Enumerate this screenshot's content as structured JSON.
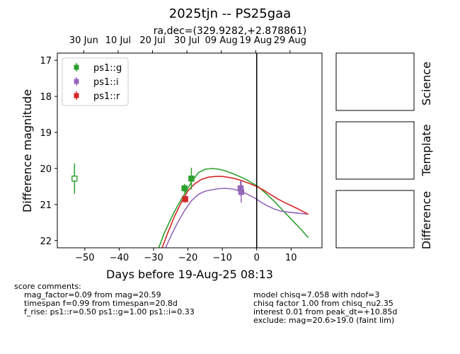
{
  "chart_data": {
    "type": "line",
    "title": "2025tjn -- PS25gaa",
    "subtitle": "ra,dec=(329.9282,+2.878861)",
    "xlabel": "Days before 19-Aug-25 08:13",
    "ylabel": "Difference magnitude",
    "xlim": [
      -58,
      19
    ],
    "ylim": [
      22.2,
      16.8
    ],
    "y_inverted": true,
    "x_ticks": [
      -50,
      -40,
      -30,
      -20,
      -10,
      0,
      10
    ],
    "x_tick_labels": [
      "−50",
      "−40",
      "−30",
      "−20",
      "−10",
      "0",
      "10"
    ],
    "y_ticks": [
      17,
      18,
      19,
      20,
      21,
      22
    ],
    "top_ticks": [
      {
        "x": -50.3,
        "label": "30 Jun"
      },
      {
        "x": -40.3,
        "label": "10 Jul"
      },
      {
        "x": -30.3,
        "label": "20 Jul"
      },
      {
        "x": -20.3,
        "label": "30 Jul"
      },
      {
        "x": -10.3,
        "label": "09 Aug"
      },
      {
        "x": -0.3,
        "label": "19 Aug"
      },
      {
        "x": 9.7,
        "label": "29 Aug"
      }
    ],
    "grid": false,
    "legend_position": "upper left",
    "vline_x": 0,
    "series": [
      {
        "name": "ps1::g",
        "color": "#2ca02c",
        "points": [
          {
            "x": -53,
            "y": 20.28,
            "err": 0.42,
            "open": true
          },
          {
            "x": -21,
            "y": 20.55,
            "err": 0.12,
            "open": false
          },
          {
            "x": -19,
            "y": 20.28,
            "err": 0.3,
            "open": false
          }
        ],
        "model": {
          "x": [
            -28.5,
            -27,
            -25,
            -23,
            -21,
            -19,
            -17,
            -15,
            -13,
            -11,
            -9,
            -7,
            -5,
            -3,
            -1,
            0,
            1,
            3,
            5,
            7,
            9,
            11,
            13,
            15
          ],
          "y": [
            22.2,
            21.82,
            21.4,
            21.03,
            20.71,
            20.38,
            20.12,
            20.02,
            20.0,
            20.02,
            20.07,
            20.14,
            20.22,
            20.31,
            20.42,
            20.48,
            20.55,
            20.72,
            20.9,
            21.1,
            21.3,
            21.5,
            21.7,
            21.92
          ]
        }
      },
      {
        "name": "ps1::i",
        "color": "#9467bd",
        "points": [
          {
            "x": -4.7,
            "y": 20.55,
            "err": 0.2,
            "open": false
          },
          {
            "x": -4.5,
            "y": 20.65,
            "err": 0.3,
            "open": false
          }
        ],
        "model": {
          "x": [
            -26.5,
            -25,
            -23,
            -21,
            -19,
            -17,
            -15,
            -13,
            -11,
            -9,
            -7,
            -5,
            -3,
            -1,
            0,
            1,
            3,
            5,
            7,
            9,
            11,
            13,
            15
          ],
          "y": [
            22.2,
            21.88,
            21.5,
            21.17,
            20.9,
            20.72,
            20.63,
            20.59,
            20.56,
            20.55,
            20.57,
            20.62,
            20.7,
            20.8,
            20.85,
            20.92,
            21.03,
            21.12,
            21.18,
            21.21,
            21.23,
            21.25,
            21.27
          ]
        }
      },
      {
        "name": "ps1::r",
        "color": "#d62728",
        "points": [
          {
            "x": -20.8,
            "y": 20.85,
            "err": 0.1,
            "open": false
          }
        ],
        "model": {
          "x": [
            -27.5,
            -26,
            -24,
            -22,
            -20,
            -18,
            -16,
            -14,
            -12,
            -10,
            -8,
            -6,
            -4,
            -2,
            0,
            2,
            4,
            6,
            8,
            10,
            12,
            14,
            15
          ],
          "y": [
            22.2,
            21.82,
            21.35,
            20.95,
            20.62,
            20.42,
            20.3,
            20.24,
            20.22,
            20.22,
            20.25,
            20.29,
            20.35,
            20.42,
            20.5,
            20.6,
            20.72,
            20.84,
            20.94,
            21.03,
            21.12,
            21.22,
            21.27
          ]
        }
      }
    ]
  },
  "panels": [
    {
      "label": "Science"
    },
    {
      "label": "Template"
    },
    {
      "label": "Difference"
    }
  ],
  "comments": {
    "header": "score comments:",
    "left_lines": [
      "mag_factor=0.09 from mag=20.59",
      "timespan f=0.99 from timespan=20.8d",
      "f_rise: ps1::r=0.50 ps1::g=1.00 ps1::i=0.33"
    ],
    "right_lines": [
      "model chisq=7.058 with ndof=3",
      "chisq factor 1.00 from chisq_nu2.35",
      "interest 0.01 from peak_dt=+10.85d",
      "exclude: mag=20.6>19.0 (faint lim)"
    ]
  }
}
